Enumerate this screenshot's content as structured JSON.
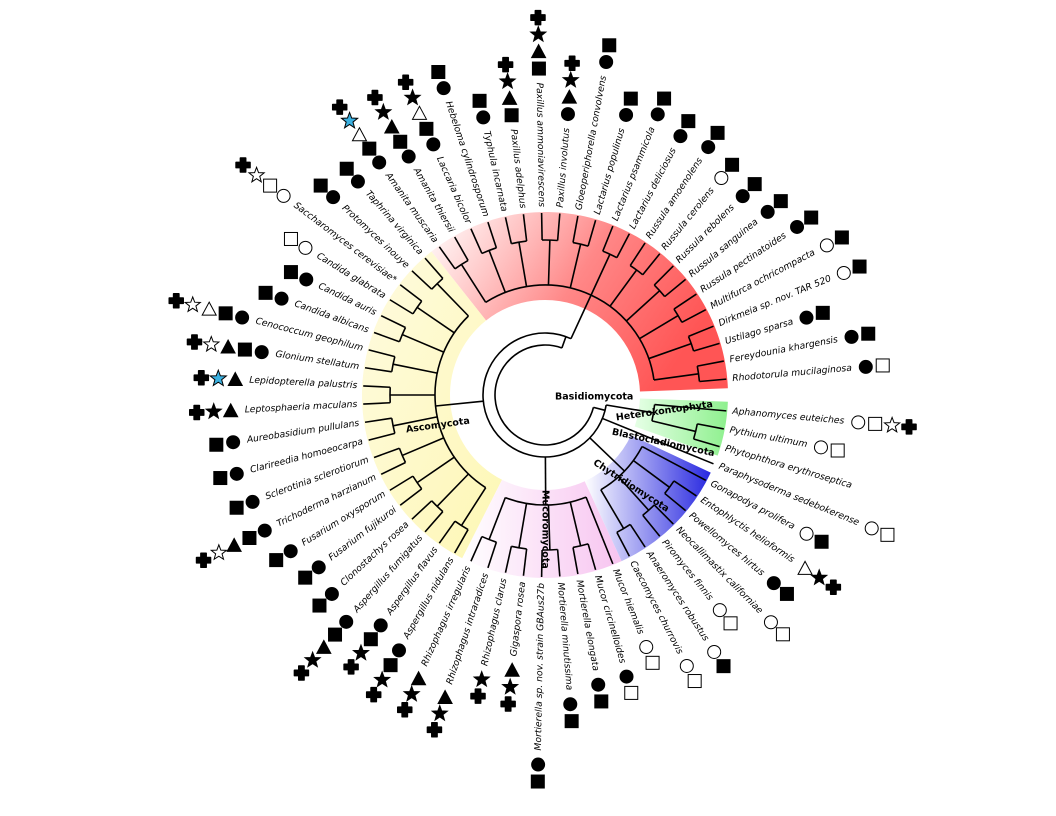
{
  "clades": [
    "Basidiomycota",
    "Heterokontophyta",
    "Blastocladiomycota",
    "Chytridiomycota",
    "Mucoromycota",
    "Ascomycota"
  ],
  "taxa": [
    "Rhodotorula mucilaginosa",
    "Fereydounia khargensis",
    "Ustilago sparsa",
    "Dirkmeia sp. nov. TAR 520",
    "Multifurca ochricompacta",
    "Russula pectinatoides",
    "Russula sanguinea",
    "Russula rebolens",
    "Russula cerolens",
    "Russula amoenolens",
    "Lactarius deliciosus",
    "Lactarius psammicola",
    "Lactarius populinus",
    "Gloeoperiphorella convolvens",
    "Paxillus involutus",
    "Paxillus ammoniavirescens",
    "Paxillus adelphus",
    "Typhula incarnata",
    "Hebeloma cylindrosporum",
    "Laccaria bicolor",
    "Amanita thiersii",
    "Amanita muscaria",
    "Taphrina virginica",
    "Protomyces inouye",
    "Saccharomyces cerevisiae*",
    "Candida glabrata",
    "Candida auris",
    "Candida albicans",
    "Cenococcum geophilum",
    "Glonium stellatum",
    "Lepidopterella palustris",
    "Leptosphaeria maculans",
    "Aureobasidium pullulans",
    "Clarireedia homoeocarpa",
    "Sclerotinia sclerotiorum",
    "Trichoderma harzianum",
    "Fusarium oxysporum",
    "Fusarium fujikuroi",
    "Clonostachys rosea",
    "Aspergillus fumigatus",
    "Aspergillus flavus",
    "Aspergillus nidulans",
    "Rhizophagus irregularis",
    "Rhizophagus intraradices",
    "Rhizophagus clarus",
    "Gigaspora rosea",
    "Mortierella sp. nov. strain GBAus27b",
    "Mortierella minutissima",
    "Mortierella elongata",
    "Mucor circinelloides",
    "Mucor hiemalis",
    "Caecomyces churrovis",
    "Anaeromyces robustus",
    "Piromyces finnis",
    "Neocallimastix californiae",
    "Powellomyces hirtus",
    "Entophlyctis helioformis",
    "Gonapodya prolifera",
    "Paraphysoderma sedebokerense",
    "Phytophthora erythroseptica",
    "Pythium ultimum",
    "Aphanomyces euteiches"
  ]
}
